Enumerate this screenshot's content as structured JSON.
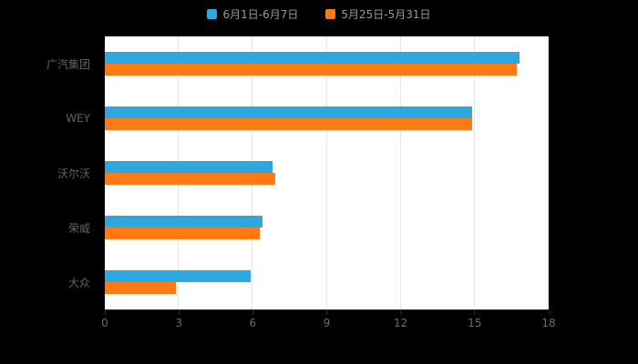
{
  "chart_data": {
    "type": "bar",
    "orientation": "horizontal",
    "title": "",
    "xlabel": "",
    "ylabel": "",
    "categories": [
      "广汽集团",
      "WEY",
      "沃尔沃",
      "荣威",
      "大众"
    ],
    "series": [
      {
        "name": "6月1日-6月7日",
        "color": "#2ca8df",
        "values": [
          16.8,
          14.9,
          6.8,
          6.4,
          5.9
        ]
      },
      {
        "name": "5月25日-5月31日",
        "color": "#ff7a14",
        "values": [
          16.7,
          14.9,
          6.9,
          6.3,
          2.9
        ]
      }
    ],
    "xlim": [
      0,
      18
    ],
    "xticks": [
      0,
      3,
      6,
      9,
      12,
      15,
      18
    ],
    "grid": true,
    "legend_position": "top"
  },
  "colors": {
    "page_background": "#000000",
    "plot_background": "#ffffff",
    "gridline": "#e4e4e4",
    "axis_line": "#333333",
    "category_label_text": "#636363",
    "tick_label_text": "#6b6b6b",
    "legend_text": "#999999"
  }
}
